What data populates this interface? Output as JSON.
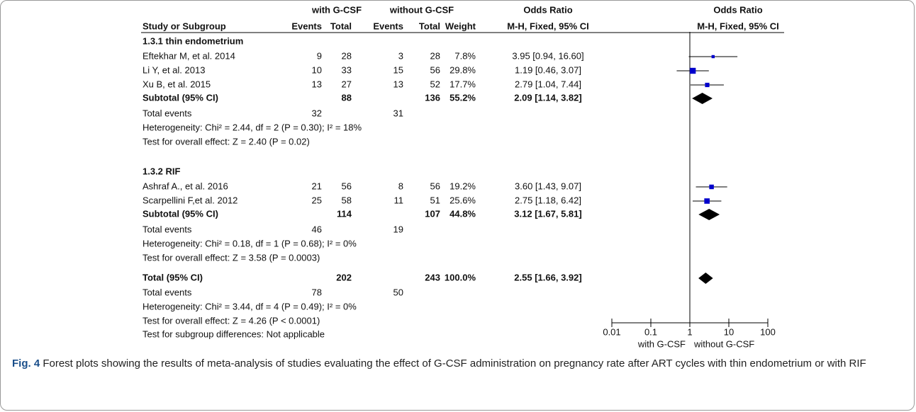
{
  "chart_data": {
    "type": "forest",
    "headers": {
      "group1": "with G-CSF",
      "group2": "without G-CSF",
      "study": "Study or Subgroup",
      "events": "Events",
      "total": "Total",
      "weight": "Weight",
      "or_top": "Odds Ratio",
      "or_sub": "M-H, Fixed, 95% CI",
      "plot_top": "Odds Ratio",
      "plot_sub": "M-H, Fixed, 95% CI"
    },
    "subgroups": [
      {
        "title": "1.3.1 thin endometrium",
        "studies": [
          {
            "name": "Eftekhar M, et al. 2014",
            "e1": 9,
            "t1": 28,
            "e2": 3,
            "t2": 28,
            "weight": 7.8,
            "weight_label": "7.8%",
            "or": 3.95,
            "ci": [
              0.94,
              16.6
            ],
            "or_label": "3.95 [0.94, 16.60]"
          },
          {
            "name": "Li Y, et al. 2013",
            "e1": 10,
            "t1": 33,
            "e2": 15,
            "t2": 56,
            "weight": 29.8,
            "weight_label": "29.8%",
            "or": 1.19,
            "ci": [
              0.46,
              3.07
            ],
            "or_label": "1.19 [0.46, 3.07]"
          },
          {
            "name": "Xu B, et al. 2015",
            "e1": 13,
            "t1": 27,
            "e2": 13,
            "t2": 52,
            "weight": 17.7,
            "weight_label": "17.7%",
            "or": 2.79,
            "ci": [
              1.04,
              7.44
            ],
            "or_label": "2.79 [1.04, 7.44]"
          }
        ],
        "subtotal": {
          "name": "Subtotal (95% CI)",
          "t1": 88,
          "t2": 136,
          "weight": 55.2,
          "weight_label": "55.2%",
          "or": 2.09,
          "ci": [
            1.14,
            3.82
          ],
          "or_label": "2.09 [1.14, 3.82]"
        },
        "events": {
          "name": "Total events",
          "e1": 32,
          "e2": 31
        },
        "heterogeneity": "Heterogeneity: Chi² = 2.44, df = 2 (P = 0.30); I² = 18%",
        "overall": "Test for overall effect: Z = 2.40 (P = 0.02)"
      },
      {
        "title": "1.3.2 RIF",
        "studies": [
          {
            "name": "Ashraf A., et al. 2016",
            "e1": 21,
            "t1": 56,
            "e2": 8,
            "t2": 56,
            "weight": 19.2,
            "weight_label": "19.2%",
            "or": 3.6,
            "ci": [
              1.43,
              9.07
            ],
            "or_label": "3.60 [1.43, 9.07]"
          },
          {
            "name": "Scarpellini F,et al. 2012",
            "e1": 25,
            "t1": 58,
            "e2": 11,
            "t2": 51,
            "weight": 25.6,
            "weight_label": "25.6%",
            "or": 2.75,
            "ci": [
              1.18,
              6.42
            ],
            "or_label": "2.75 [1.18, 6.42]"
          }
        ],
        "subtotal": {
          "name": "Subtotal (95% CI)",
          "t1": 114,
          "t2": 107,
          "weight": 44.8,
          "weight_label": "44.8%",
          "or": 3.12,
          "ci": [
            1.67,
            5.81
          ],
          "or_label": "3.12 [1.67, 5.81]"
        },
        "events": {
          "name": "Total events",
          "e1": 46,
          "e2": 19
        },
        "heterogeneity": "Heterogeneity: Chi² = 0.18, df = 1 (P = 0.68); I² = 0%",
        "overall": "Test for overall effect: Z = 3.58 (P = 0.0003)"
      }
    ],
    "total": {
      "name": "Total (95% CI)",
      "t1": 202,
      "t2": 243,
      "weight": 100,
      "weight_label": "100.0%",
      "or": 2.55,
      "ci": [
        1.66,
        3.92
      ],
      "or_label": "2.55 [1.66, 3.92]",
      "events": {
        "name": "Total events",
        "e1": 78,
        "e2": 50
      },
      "heterogeneity": "Heterogeneity: Chi² = 3.44, df = 4 (P = 0.49); I² = 0%",
      "overall": "Test for overall effect: Z = 4.26 (P < 0.0001)",
      "subgroup_diff": "Test for subgroup  differences: Not applicable"
    },
    "xlim": [
      0.01,
      100
    ],
    "xticks": [
      0.01,
      0.1,
      1,
      10,
      100
    ],
    "log": true,
    "xlabel_left": "with G-CSF",
    "xlabel_right": "without G-CSF",
    "color": "#0000cc"
  },
  "caption": {
    "label": "Fig. 4",
    "text": "Forest plots showing the results of meta-analysis of studies evaluating the effect of G-CSF administration on pregnancy rate after ART cycles with thin endometrium or with RIF"
  }
}
